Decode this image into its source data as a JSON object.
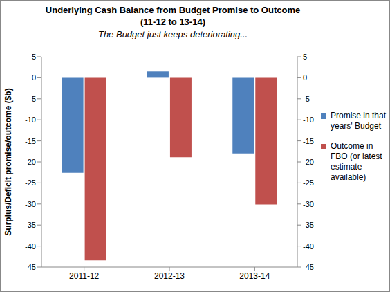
{
  "chart_data": {
    "type": "bar",
    "title": "Underlying Cash Balance from Budget Promise to Outcome",
    "title_line2": "(11-12 to 13-14)",
    "subtitle": "The Budget just keeps deteriorating...",
    "y_label": "Surplus/Deficit promise/outcome ($b)",
    "categories": [
      "2011-12",
      "2012-13",
      "2013-14"
    ],
    "series": [
      {
        "name": "Promise in that years' Budget",
        "color": "#4f81bd",
        "values": [
          -22.6,
          1.5,
          -18.0
        ]
      },
      {
        "name": "Outcome in FBO (or latest estimate available)",
        "color": "#c0504d",
        "values": [
          -43.4,
          -18.9,
          -30.1
        ]
      }
    ],
    "ylim": [
      -45,
      5
    ],
    "yticks": [
      -45,
      -40,
      -35,
      -30,
      -25,
      -20,
      -15,
      -10,
      -5,
      0,
      5
    ],
    "y2lim": [
      -45,
      5
    ],
    "y2ticks": [
      -45,
      -40,
      -35,
      -30,
      -25,
      -20,
      -15,
      -10,
      -5,
      0,
      5
    ],
    "grid": false,
    "legend": "right"
  }
}
